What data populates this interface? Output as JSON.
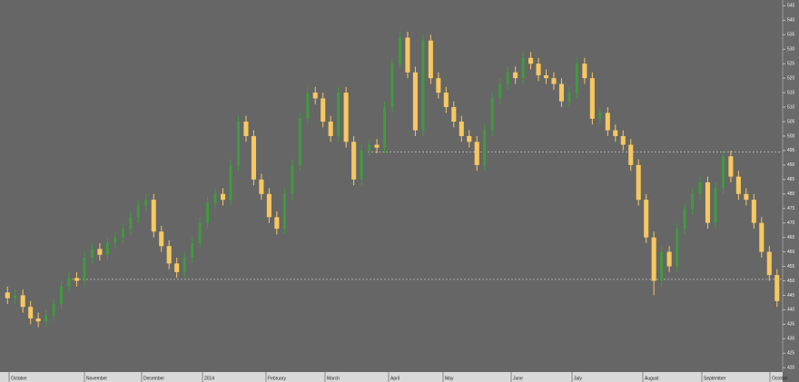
{
  "chart_data": {
    "type": "candlestick",
    "up_color": "#3f9b3f",
    "down_color": "#f7c860",
    "ylim": [
      418.5,
      547
    ],
    "yticks": [
      420,
      425,
      430,
      435,
      440,
      445,
      450,
      455,
      460,
      465,
      470,
      475,
      480,
      485,
      490,
      495,
      500,
      505,
      510,
      515,
      520,
      525,
      530,
      535,
      540,
      545
    ],
    "reference_lines": [
      450.5,
      494.5
    ],
    "month_labels": [
      "October",
      "November",
      "December",
      "2014",
      "February",
      "March",
      "April",
      "May",
      "June",
      "July",
      "August",
      "September",
      "October"
    ],
    "open": [
      446,
      444,
      445,
      441,
      437,
      436,
      438,
      442,
      448,
      451,
      450,
      458,
      461,
      459,
      463,
      465,
      468,
      472,
      476,
      478,
      467,
      462,
      456,
      453,
      458,
      463,
      470,
      477,
      480,
      478,
      490,
      505,
      500,
      485,
      480,
      472,
      468,
      480,
      490,
      506,
      515,
      513,
      505,
      500,
      515,
      498,
      485,
      495,
      497,
      496,
      510,
      525,
      534,
      522,
      502,
      533,
      520,
      515,
      510,
      505,
      500,
      498,
      490,
      502,
      513,
      518,
      522,
      520,
      527,
      525,
      521,
      520,
      518,
      512,
      515,
      525,
      520,
      506,
      508,
      502,
      500,
      497,
      490,
      478,
      465,
      450,
      460,
      455,
      468,
      475,
      480,
      484,
      470,
      482,
      493,
      486,
      480,
      478,
      470,
      460,
      452
    ],
    "high": [
      448,
      447,
      447,
      443,
      439,
      440,
      444,
      450,
      453,
      453,
      460,
      463,
      463,
      465,
      467,
      470,
      474,
      478,
      480,
      480,
      469,
      464,
      458,
      460,
      465,
      472,
      479,
      482,
      482,
      492,
      507,
      507,
      502,
      487,
      482,
      474,
      482,
      492,
      508,
      517,
      517,
      515,
      507,
      517,
      517,
      500,
      497,
      499,
      499,
      512,
      527,
      536,
      536,
      524,
      535,
      535,
      522,
      517,
      512,
      507,
      502,
      500,
      504,
      515,
      520,
      524,
      524,
      529,
      529,
      527,
      523,
      522,
      520,
      517,
      527,
      527,
      522,
      510,
      510,
      504,
      502,
      499,
      492,
      480,
      467,
      462,
      462,
      470,
      477,
      482,
      486,
      486,
      484,
      495,
      495,
      488,
      482,
      480,
      472,
      462,
      454
    ],
    "low": [
      442,
      442,
      439,
      435,
      434,
      434,
      436,
      440,
      446,
      448,
      448,
      456,
      457,
      457,
      461,
      463,
      466,
      470,
      474,
      465,
      460,
      454,
      451,
      451,
      456,
      461,
      468,
      475,
      476,
      476,
      488,
      498,
      483,
      478,
      470,
      466,
      466,
      478,
      488,
      504,
      511,
      503,
      498,
      498,
      496,
      483,
      483,
      493,
      494,
      494,
      508,
      523,
      520,
      500,
      500,
      518,
      513,
      508,
      503,
      498,
      496,
      488,
      488,
      500,
      511,
      516,
      518,
      518,
      523,
      519,
      518,
      516,
      510,
      510,
      513,
      518,
      504,
      504,
      500,
      498,
      495,
      488,
      476,
      463,
      445,
      448,
      453,
      453,
      466,
      473,
      478,
      468,
      468,
      480,
      484,
      478,
      476,
      468,
      458,
      450,
      441
    ],
    "close": [
      444,
      445,
      441,
      437,
      436,
      438,
      442,
      448,
      451,
      450,
      458,
      461,
      459,
      463,
      465,
      468,
      472,
      476,
      478,
      467,
      462,
      456,
      453,
      458,
      463,
      470,
      477,
      480,
      478,
      490,
      505,
      500,
      485,
      480,
      472,
      468,
      480,
      490,
      506,
      515,
      513,
      505,
      500,
      515,
      498,
      485,
      495,
      497,
      496,
      510,
      525,
      534,
      522,
      502,
      533,
      520,
      515,
      510,
      505,
      500,
      498,
      490,
      502,
      513,
      518,
      522,
      520,
      527,
      525,
      521,
      520,
      518,
      512,
      515,
      525,
      520,
      506,
      508,
      502,
      500,
      497,
      490,
      478,
      465,
      450,
      460,
      455,
      468,
      475,
      480,
      484,
      470,
      482,
      493,
      486,
      480,
      478,
      470,
      460,
      452,
      443
    ]
  }
}
